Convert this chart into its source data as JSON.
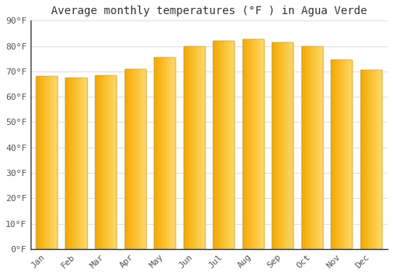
{
  "title": "Average monthly temperatures (°F ) in Agua Verde",
  "months": [
    "Jan",
    "Feb",
    "Mar",
    "Apr",
    "May",
    "Jun",
    "Jul",
    "Aug",
    "Sep",
    "Oct",
    "Nov",
    "Dec"
  ],
  "values": [
    68,
    67.5,
    68.5,
    71,
    75.5,
    80,
    82,
    82.5,
    81.5,
    80,
    74.5,
    70.5
  ],
  "bar_color_left": "#F5A800",
  "bar_color_right": "#FFD966",
  "ylim": [
    0,
    90
  ],
  "ytick_step": 10,
  "background_color": "#ffffff",
  "grid_color": "#e0e0e0",
  "title_fontsize": 10,
  "tick_fontsize": 8,
  "spine_color": "#333333"
}
